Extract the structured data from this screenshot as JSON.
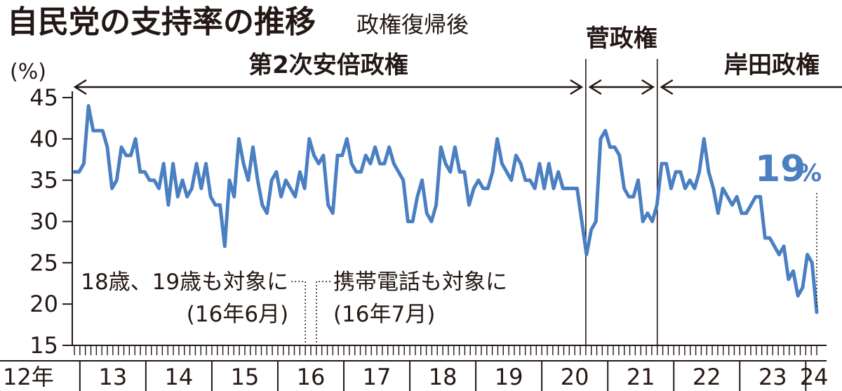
{
  "chart_data": {
    "type": "line",
    "title": "自民党の支持率の推移",
    "subtitle": "政権復帰後",
    "ylabel": "(%)",
    "ylim": [
      15,
      45
    ],
    "yticks": [
      15,
      20,
      25,
      30,
      35,
      40,
      45
    ],
    "year_ticks": [
      "12年",
      "13",
      "14",
      "15",
      "16",
      "17",
      "18",
      "19",
      "20",
      "21",
      "22",
      "23",
      "24"
    ],
    "x_start": "2012-12",
    "x_end": "2024-03",
    "series": [
      {
        "color": "#4a7fc1",
        "values": [
          36,
          36,
          37,
          44,
          41,
          41,
          41,
          39,
          34,
          35,
          39,
          38,
          38,
          40,
          36,
          36,
          35,
          35,
          34,
          37,
          32,
          37,
          33,
          35,
          33,
          34,
          37,
          34,
          37,
          33,
          32,
          32,
          27,
          35,
          33,
          40,
          37,
          35,
          39,
          35,
          32,
          31,
          35,
          36,
          33,
          35,
          34,
          33,
          36,
          34,
          40,
          38,
          37,
          38,
          32,
          31,
          38,
          38,
          40,
          37,
          36,
          36,
          38,
          37,
          39,
          37,
          37,
          39,
          37,
          36,
          35,
          30,
          30,
          33,
          35,
          31,
          30,
          32,
          39,
          37,
          36,
          39,
          36,
          36,
          32,
          34,
          35,
          34,
          34,
          36,
          40,
          37,
          36,
          35,
          38,
          37,
          35,
          35,
          34,
          37,
          34,
          37,
          34,
          36,
          34,
          34,
          34,
          34,
          30,
          26,
          29,
          30,
          40,
          41,
          39,
          39,
          38,
          34,
          33,
          33,
          35,
          30,
          31,
          30,
          32,
          37,
          37,
          34,
          36,
          36,
          34,
          35,
          34,
          36,
          40,
          36,
          34,
          31,
          34,
          33,
          32,
          33,
          31,
          31,
          32,
          33,
          33,
          28,
          28,
          27,
          26,
          27,
          23,
          24,
          21,
          22,
          26,
          25,
          19
        ]
      }
    ],
    "eras": [
      {
        "label": "第2次安倍政権",
        "start": "2012-12",
        "end": "2020-09"
      },
      {
        "label": "菅政権",
        "start": "2020-09",
        "end": "2021-10"
      },
      {
        "label": "岸田政権",
        "start": "2021-10",
        "end": "2024-03"
      }
    ],
    "annotations": [
      {
        "text_line1": "18歳、19歳も対象に",
        "text_line2": "(16年6月)",
        "at": "2016-06"
      },
      {
        "text_line1": "携帯電話も対象に",
        "text_line2": "(16年7月)",
        "at": "2016-07"
      }
    ],
    "latest_label": {
      "value": "19",
      "unit": "%"
    }
  }
}
